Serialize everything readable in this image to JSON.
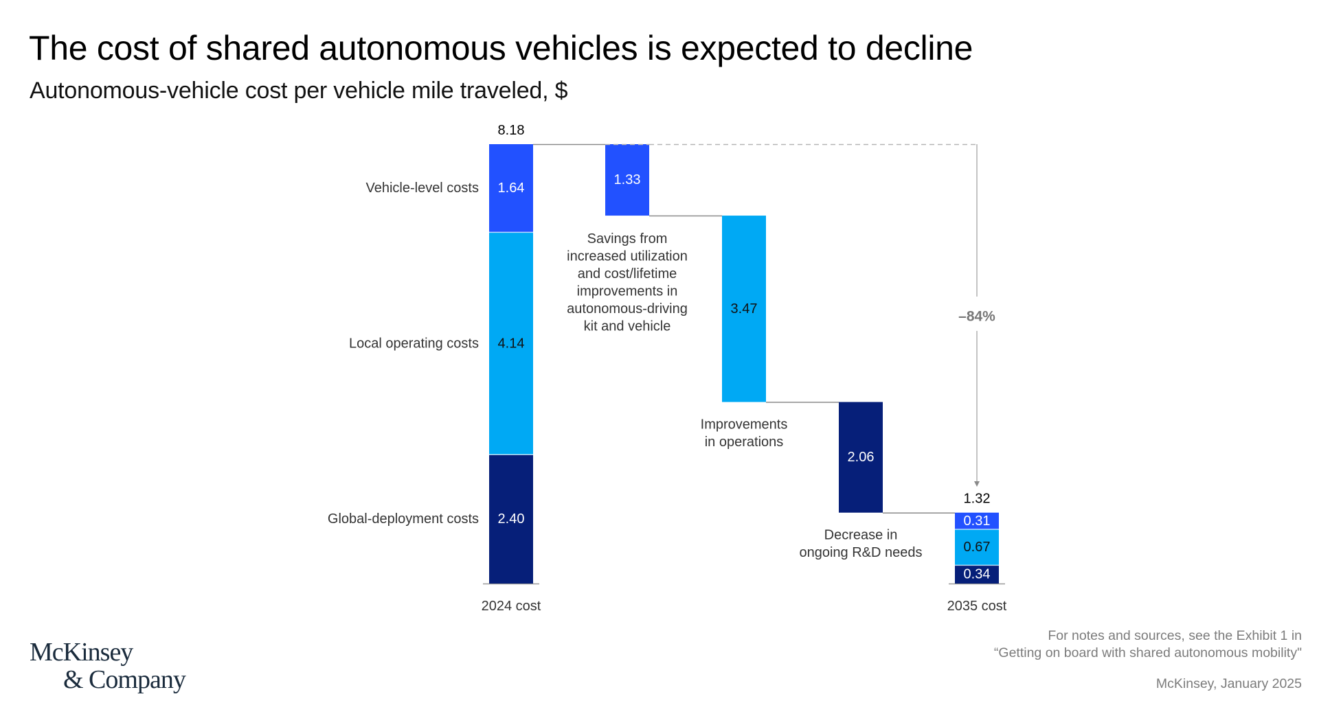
{
  "header": {
    "title": "The cost of shared autonomous vehicles is expected to decline",
    "subtitle": "Autonomous-vehicle cost per vehicle mile traveled, $"
  },
  "colors": {
    "vehicle_level": "#2251ff",
    "local_operating": "#00a9f4",
    "global_deployment": "#061f79",
    "connector": "#8a8a8a",
    "dashed": "#b5b5b5",
    "annotation_text": "#333333",
    "percent_text": "#777777"
  },
  "chart_data": {
    "type": "waterfall",
    "title": "The cost of shared autonomous vehicles is expected to decline",
    "ylabel": "Autonomous-vehicle cost per vehicle mile traveled, $",
    "ylim": [
      0,
      8.18
    ],
    "grid": false,
    "legend": "inline-left",
    "segment_names": [
      "Vehicle-level costs",
      "Local operating costs",
      "Global-deployment costs"
    ],
    "bars": [
      {
        "id": "2024",
        "kind": "total",
        "category": "2024 cost",
        "total_label": "8.18",
        "total": 8.18,
        "segments": [
          {
            "name": "Global-deployment costs",
            "value": 2.4,
            "label": "2.40",
            "color_key": "global_deployment",
            "label_color": "#ffffff"
          },
          {
            "name": "Local operating costs",
            "value": 4.14,
            "label": "4.14",
            "color_key": "local_operating",
            "label_color": "#111111"
          },
          {
            "name": "Vehicle-level costs",
            "value": 1.64,
            "label": "1.64",
            "color_key": "vehicle_level",
            "label_color": "#ffffff"
          }
        ]
      },
      {
        "id": "vehicle-savings",
        "kind": "decrease",
        "category": "Savings from increased utilization and cost/lifetime improvements in autonomous-driving kit and vehicle",
        "annotation_lines": [
          "Savings from",
          "increased utilization",
          "and cost/lifetime",
          "improvements in",
          "autonomous-driving",
          "kit and vehicle"
        ],
        "value": 1.33,
        "label": "1.33",
        "color_key": "vehicle_level",
        "label_color": "#ffffff"
      },
      {
        "id": "operations",
        "kind": "decrease",
        "category": "Improvements in operations",
        "annotation_lines": [
          "Improvements",
          "in operations"
        ],
        "value": 3.47,
        "label": "3.47",
        "color_key": "local_operating",
        "label_color": "#111111"
      },
      {
        "id": "rnd",
        "kind": "decrease",
        "category": "Decrease in ongoing R&D needs",
        "annotation_lines": [
          "Decrease in",
          "ongoing R&D needs"
        ],
        "value": 2.06,
        "label": "2.06",
        "color_key": "global_deployment",
        "label_color": "#ffffff"
      },
      {
        "id": "2035",
        "kind": "total",
        "category": "2035 cost",
        "total_label": "1.32",
        "total": 1.32,
        "segments": [
          {
            "name": "Global-deployment costs",
            "value": 0.34,
            "label": "0.34",
            "color_key": "global_deployment",
            "label_color": "#ffffff"
          },
          {
            "name": "Local operating costs",
            "value": 0.67,
            "label": "0.67",
            "color_key": "local_operating",
            "label_color": "#111111"
          },
          {
            "name": "Vehicle-level costs",
            "value": 0.31,
            "label": "0.31",
            "color_key": "vehicle_level",
            "label_color": "#ffffff"
          }
        ]
      }
    ],
    "change_annotation": {
      "label": "–84%",
      "from": 8.18,
      "to": 1.32
    }
  },
  "footer": {
    "logo_line1": "McKinsey",
    "logo_line2": "& Company",
    "note_line1": "For notes and sources, see the Exhibit 1 in",
    "note_line2": "“Getting on board with shared autonomous mobility\"",
    "date": "McKinsey, January 2025"
  }
}
